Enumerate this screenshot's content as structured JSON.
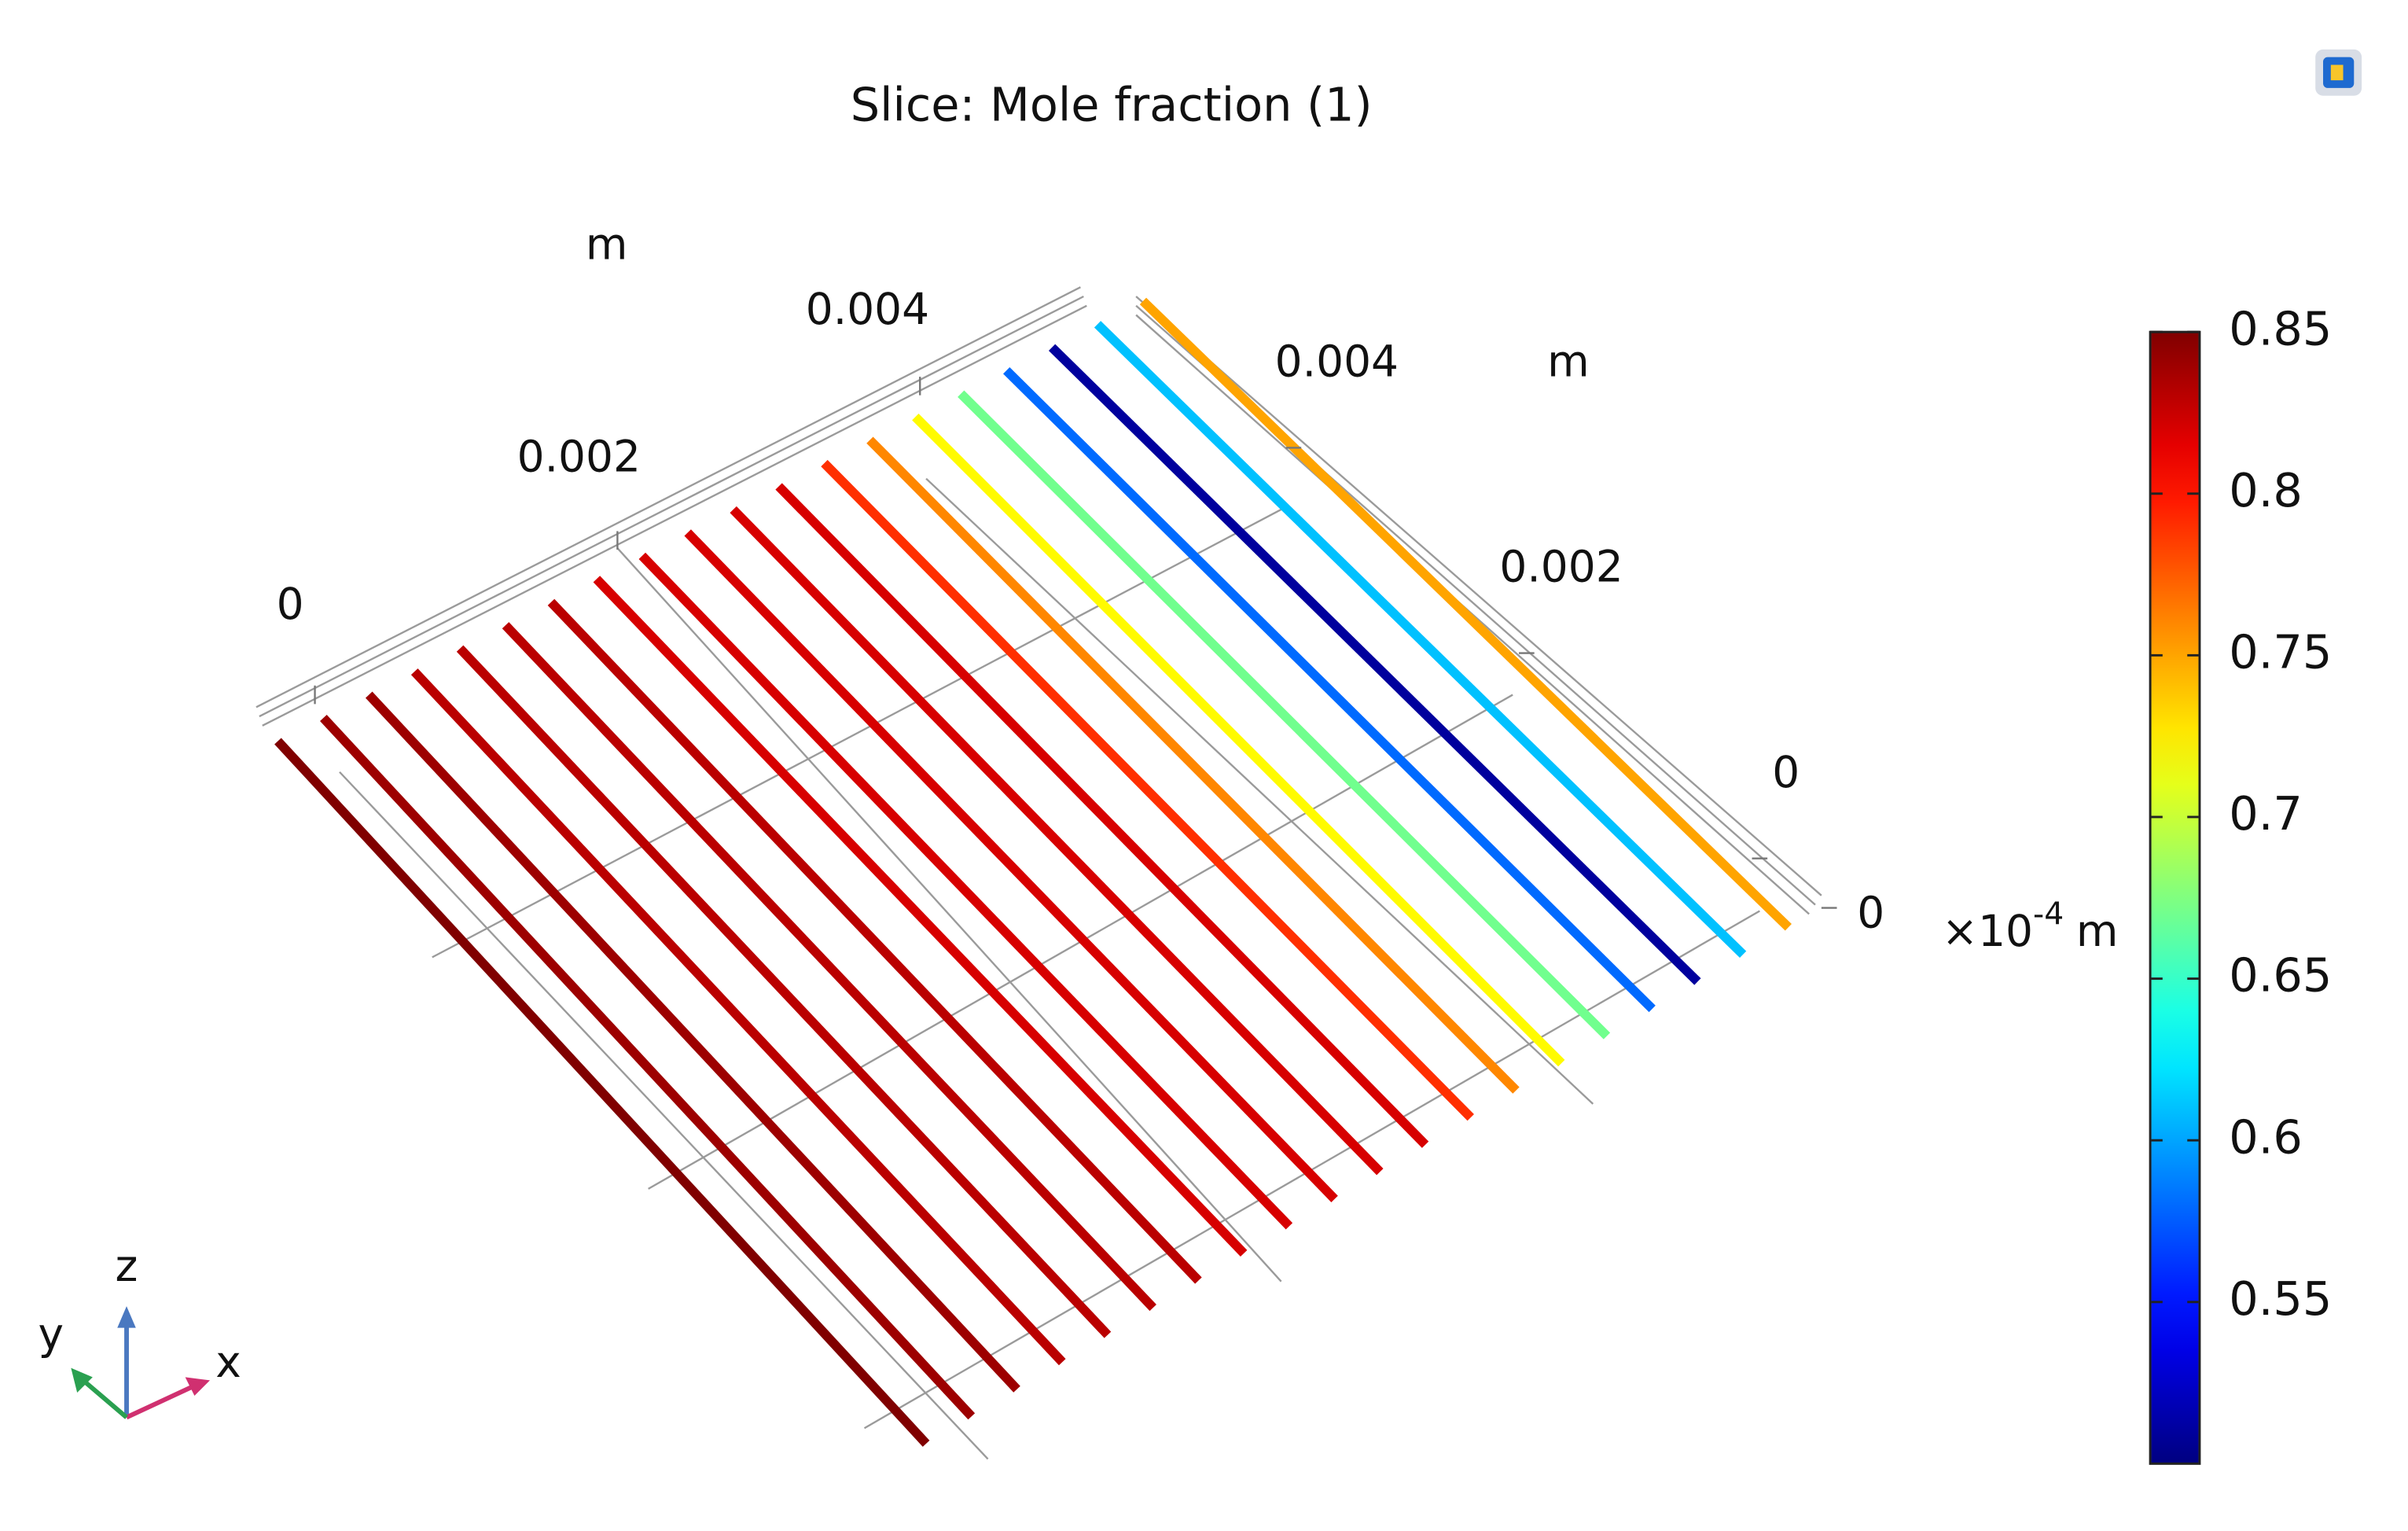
{
  "chart_data": {
    "type": "slice",
    "title": "Slice: Mole fraction (1)",
    "values": [
      0.85,
      0.84,
      0.84,
      0.83,
      0.83,
      0.83,
      0.83,
      0.82,
      0.82,
      0.82,
      0.82,
      0.82,
      0.79,
      0.76,
      0.72,
      0.67,
      0.58,
      0.51,
      0.61,
      0.75
    ],
    "x_axis": {
      "unit": "m",
      "ticks": [
        0,
        0.002,
        0.004
      ]
    },
    "y_axis": {
      "unit": "m",
      "ticks": [
        0.004,
        0.002,
        0
      ]
    },
    "z_axis": {
      "ticks": [
        0
      ],
      "scale_label": "×10",
      "scale_exponent": "-4",
      "unit": "m"
    },
    "colorbar": {
      "colormap": "jet",
      "clim": [
        0.5,
        0.85
      ],
      "ticks": [
        0.85,
        0.8,
        0.75,
        0.7,
        0.65,
        0.6,
        0.55
      ]
    },
    "triad": {
      "x": "x",
      "y": "y",
      "z": "z"
    }
  }
}
